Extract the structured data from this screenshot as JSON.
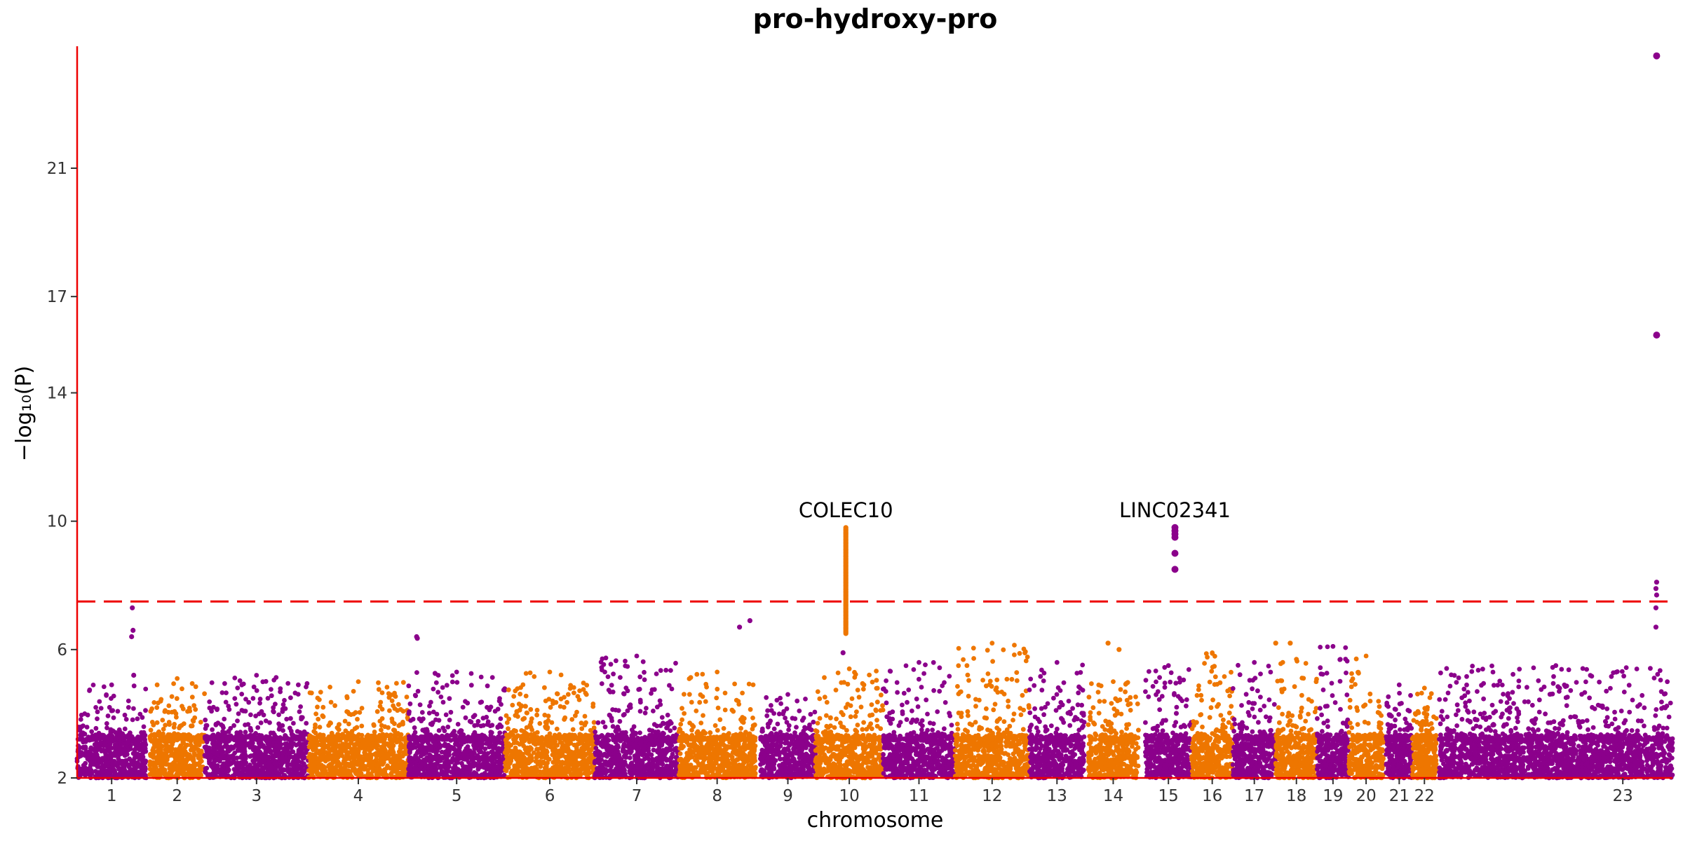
{
  "chart_data": {
    "type": "scatter",
    "title": "pro-hydroxy-pro",
    "xlabel": "chromosome",
    "ylabel": "−log₁₀(P)",
    "y_ticks": [
      2,
      6,
      10,
      14,
      17,
      21
    ],
    "ylim": [
      2,
      24.8
    ],
    "significance_threshold": 7.5,
    "colors": {
      "odd": "#8B008B",
      "even": "#EE7600",
      "threshold": "#EE0000",
      "axis": "#EE0000"
    },
    "chromosomes": [
      {
        "label": "1",
        "start": 0,
        "end": 100,
        "max": 4.9
      },
      {
        "label": "2",
        "start": 105,
        "end": 185,
        "max": 5.1
      },
      {
        "label": "3",
        "start": 185,
        "end": 335,
        "max": 5.2
      },
      {
        "label": "4",
        "start": 335,
        "end": 480,
        "max": 5.0
      },
      {
        "label": "5",
        "start": 480,
        "end": 620,
        "max": 5.3
      },
      {
        "label": "6",
        "start": 620,
        "end": 750,
        "max": 5.3
      },
      {
        "label": "7",
        "start": 750,
        "end": 872,
        "max": 5.8
      },
      {
        "label": "8",
        "start": 872,
        "end": 983,
        "max": 5.3
      },
      {
        "label": "9",
        "start": 990,
        "end": 1070,
        "max": 4.6
      },
      {
        "label": "10",
        "start": 1070,
        "end": 1168,
        "max": 5.4
      },
      {
        "label": "11",
        "start": 1168,
        "end": 1272,
        "max": 5.6
      },
      {
        "label": "12",
        "start": 1272,
        "end": 1380,
        "max": 6.2
      },
      {
        "label": "13",
        "start": 1380,
        "end": 1460,
        "max": 5.6
      },
      {
        "label": "14",
        "start": 1465,
        "end": 1538,
        "max": 5.0
      },
      {
        "label": "15",
        "start": 1548,
        "end": 1615,
        "max": 5.5
      },
      {
        "label": "16",
        "start": 1615,
        "end": 1675,
        "max": 5.9
      },
      {
        "label": "17",
        "start": 1675,
        "end": 1737,
        "max": 5.6
      },
      {
        "label": "18",
        "start": 1737,
        "end": 1797,
        "max": 5.7
      },
      {
        "label": "19",
        "start": 1797,
        "end": 1843,
        "max": 6.1
      },
      {
        "label": "20",
        "start": 1843,
        "end": 1893,
        "max": 5.8
      },
      {
        "label": "21",
        "start": 1897,
        "end": 1935,
        "max": 4.9
      },
      {
        "label": "22",
        "start": 1935,
        "end": 1970,
        "max": 4.8
      },
      {
        "label": "23",
        "start": 1974,
        "end": 2312,
        "max": 5.5
      }
    ],
    "notable_points": [
      {
        "chrom": "1",
        "pos": 80,
        "y": 7.3
      },
      {
        "chrom": "1",
        "pos": 81,
        "y": 6.6
      },
      {
        "chrom": "1",
        "pos": 79,
        "y": 6.4
      },
      {
        "chrom": "1",
        "pos": 82,
        "y": 5.2
      },
      {
        "chrom": "3",
        "pos": 492,
        "y": 6.4
      },
      {
        "chrom": "3",
        "pos": 493,
        "y": 6.35
      },
      {
        "chrom": "7",
        "pos": 960,
        "y": 6.7
      },
      {
        "chrom": "7",
        "pos": 975,
        "y": 6.9
      },
      {
        "chrom": "7",
        "pos": 1110,
        "y": 5.9
      },
      {
        "chrom": "12",
        "pos": 1494,
        "y": 6.2
      },
      {
        "chrom": "12",
        "pos": 1510,
        "y": 6.0
      },
      {
        "chrom": "14",
        "pos": 1737,
        "y": 6.2
      },
      {
        "chrom": "14",
        "pos": 1758,
        "y": 6.2
      },
      {
        "chrom": "23",
        "pos": 2288,
        "y": 7.9
      },
      {
        "chrom": "23",
        "pos": 2289,
        "y": 7.7
      },
      {
        "chrom": "23",
        "pos": 2288,
        "y": 7.3
      },
      {
        "chrom": "23",
        "pos": 2288,
        "y": 6.7
      },
      {
        "chrom": "23",
        "pos": 2289,
        "y": 8.1
      },
      {
        "chrom": "23",
        "pos": 2289,
        "y": 15.8
      },
      {
        "chrom": "23",
        "pos": 2289,
        "y": 24.5
      }
    ],
    "peaks": [
      {
        "label": "COLEC10",
        "chrom": "8",
        "pos": 1114,
        "top": 9.8,
        "bottom": 6.5,
        "lead": 9.8
      },
      {
        "label": "LINC02341",
        "chrom": "13",
        "pos": 1591,
        "top": 9.8,
        "bottom": 8.5,
        "lead": 9.8,
        "points": [
          9.8,
          9.7,
          9.6,
          9.5,
          9.0,
          8.5
        ]
      }
    ]
  }
}
